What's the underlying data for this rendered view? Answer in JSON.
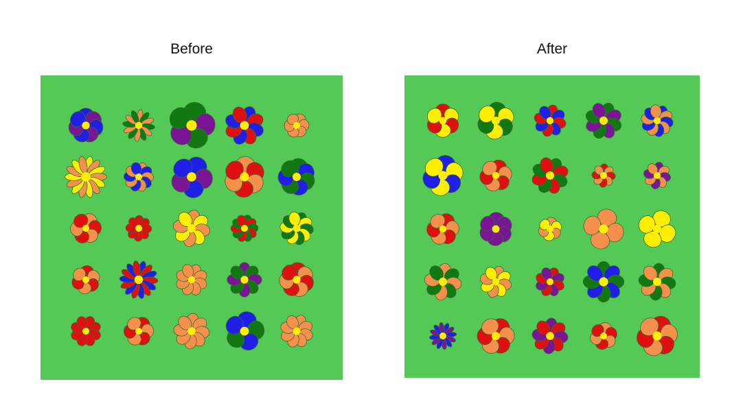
{
  "panels": [
    {
      "title": "Before",
      "background": "#55c955",
      "flowers": [
        [
          {
            "petals": [
              "#1f1fe6",
              "#7a1596"
            ],
            "count": 7,
            "center": "#ffee00"
          },
          {
            "petals": [
              "#f5904c",
              "#127812"
            ],
            "count": 12,
            "center": "#ffee00",
            "thin": true
          },
          {
            "petals": [
              "#127812",
              "#7a1596"
            ],
            "count": 5,
            "center": "#ffee00"
          },
          {
            "petals": [
              "#1f1fe6",
              "#e01010"
            ],
            "count": 8,
            "center": "#ffee00"
          },
          {
            "petals": [
              "#f5904c"
            ],
            "count": 6,
            "center": "#ffee00"
          }
        ],
        [
          {
            "petals": [
              "#ffee00",
              "#f5904c"
            ],
            "count": 14,
            "center": "#ffee00",
            "thin": true
          },
          {
            "petals": [
              "#f5904c",
              "#1f1fe6"
            ],
            "count": 10,
            "center": "#ffee00"
          },
          {
            "petals": [
              "#1f1fe6",
              "#7a1596"
            ],
            "count": 5,
            "center": "#ffee00"
          },
          {
            "petals": [
              "#f5904c",
              "#e01010"
            ],
            "count": 6,
            "center": "#ffee00"
          },
          {
            "petals": [
              "#127812",
              "#1f1fe6"
            ],
            "count": 7,
            "center": "#ffee00"
          }
        ],
        [
          {
            "petals": [
              "#f5904c",
              "#e01010"
            ],
            "count": 6,
            "center": "#ffee00"
          },
          {
            "petals": [
              "#e01010"
            ],
            "count": 8,
            "center": "#ffee00"
          },
          {
            "petals": [
              "#f5904c",
              "#ffee00"
            ],
            "count": 8,
            "center": "#ffee00"
          },
          {
            "petals": [
              "#127812",
              "#e01010"
            ],
            "count": 10,
            "center": "#ffee00"
          },
          {
            "petals": [
              "#127812",
              "#ffee00"
            ],
            "count": 10,
            "center": "#ffee00"
          }
        ],
        [
          {
            "petals": [
              "#e01010",
              "#f5904c"
            ],
            "count": 6,
            "center": "#ffee00"
          },
          {
            "petals": [
              "#1f1fe6",
              "#e01010"
            ],
            "count": 14,
            "center": "#ffee00",
            "thin": true
          },
          {
            "petals": [
              "#f5904c"
            ],
            "count": 8,
            "center": "#ffee00"
          },
          {
            "petals": [
              "#7a1596",
              "#127812"
            ],
            "count": 8,
            "center": "#ffee00"
          },
          {
            "petals": [
              "#e01010",
              "#f5904c"
            ],
            "count": 7,
            "center": "#ffee00"
          }
        ],
        [
          {
            "petals": [
              "#e01010"
            ],
            "count": 8,
            "center": "#ffee00"
          },
          {
            "petals": [
              "#e01010",
              "#f5904c"
            ],
            "count": 6,
            "center": "#ffee00"
          },
          {
            "petals": [
              "#f5904c"
            ],
            "count": 8,
            "center": "#ffee00"
          },
          {
            "petals": [
              "#1f1fe6",
              "#127812"
            ],
            "count": 5,
            "center": "#ffee00"
          },
          {
            "petals": [
              "#f5904c"
            ],
            "count": 8,
            "center": "#ffee00"
          }
        ]
      ]
    },
    {
      "title": "After",
      "background": "#55c955",
      "flowers": [
        [
          {
            "petals": [
              "#e01010",
              "#ffee00"
            ],
            "count": 6,
            "center": "#ffee00"
          },
          {
            "petals": [
              "#127812",
              "#ffee00"
            ],
            "count": 6,
            "center": "#ffee00"
          },
          {
            "petals": [
              "#e01010",
              "#1f1fe6"
            ],
            "count": 8,
            "center": "#ffee00"
          },
          {
            "petals": [
              "#127812",
              "#7a1596"
            ],
            "count": 8,
            "center": "#ffee00"
          },
          {
            "petals": [
              "#1f1fe6",
              "#f5904c"
            ],
            "count": 10,
            "center": "#ffee00"
          }
        ],
        [
          {
            "petals": [
              "#1f1fe6",
              "#ffee00"
            ],
            "count": 6,
            "center": "#ffee00"
          },
          {
            "petals": [
              "#e01010",
              "#f5904c"
            ],
            "count": 6,
            "center": "#ffee00"
          },
          {
            "petals": [
              "#127812",
              "#e01010"
            ],
            "count": 8,
            "center": "#ffee00"
          },
          {
            "petals": [
              "#e01010",
              "#f5904c"
            ],
            "count": 8,
            "center": "#ffee00"
          },
          {
            "petals": [
              "#7a1596",
              "#f5904c"
            ],
            "count": 8,
            "center": "#ffee00"
          }
        ],
        [
          {
            "petals": [
              "#e01010",
              "#f5904c"
            ],
            "count": 6,
            "center": "#ffee00"
          },
          {
            "petals": [
              "#7a1596"
            ],
            "count": 6,
            "center": "#ffee00"
          },
          {
            "petals": [
              "#f5904c",
              "#ffee00"
            ],
            "count": 6,
            "center": "#ffee00"
          },
          {
            "petals": [
              "#f5904c"
            ],
            "count": 4,
            "center": "#ffee00"
          },
          {
            "petals": [
              "#ffee00"
            ],
            "count": 4,
            "center": "#ffee00"
          }
        ],
        [
          {
            "petals": [
              "#f5904c",
              "#127812"
            ],
            "count": 8,
            "center": "#ffee00"
          },
          {
            "petals": [
              "#f5904c",
              "#ffee00"
            ],
            "count": 8,
            "center": "#ffee00"
          },
          {
            "petals": [
              "#e01010",
              "#7a1596"
            ],
            "count": 8,
            "center": "#ffee00"
          },
          {
            "petals": [
              "#127812",
              "#1f1fe6"
            ],
            "count": 8,
            "center": "#ffee00"
          },
          {
            "petals": [
              "#127812",
              "#f5904c"
            ],
            "count": 8,
            "center": "#ffee00"
          }
        ],
        [
          {
            "petals": [
              "#1f1fe6",
              "#7a1596"
            ],
            "count": 12,
            "center": "#ffee00",
            "thin": true
          },
          {
            "petals": [
              "#e01010",
              "#f5904c"
            ],
            "count": 6,
            "center": "#ffee00"
          },
          {
            "petals": [
              "#7a1596",
              "#e01010"
            ],
            "count": 8,
            "center": "#ffee00"
          },
          {
            "petals": [
              "#f5904c",
              "#e01010"
            ],
            "count": 6,
            "center": "#ffee00"
          },
          {
            "petals": [
              "#e01010",
              "#f5904c"
            ],
            "count": 6,
            "center": "#ffee00"
          }
        ]
      ]
    }
  ]
}
